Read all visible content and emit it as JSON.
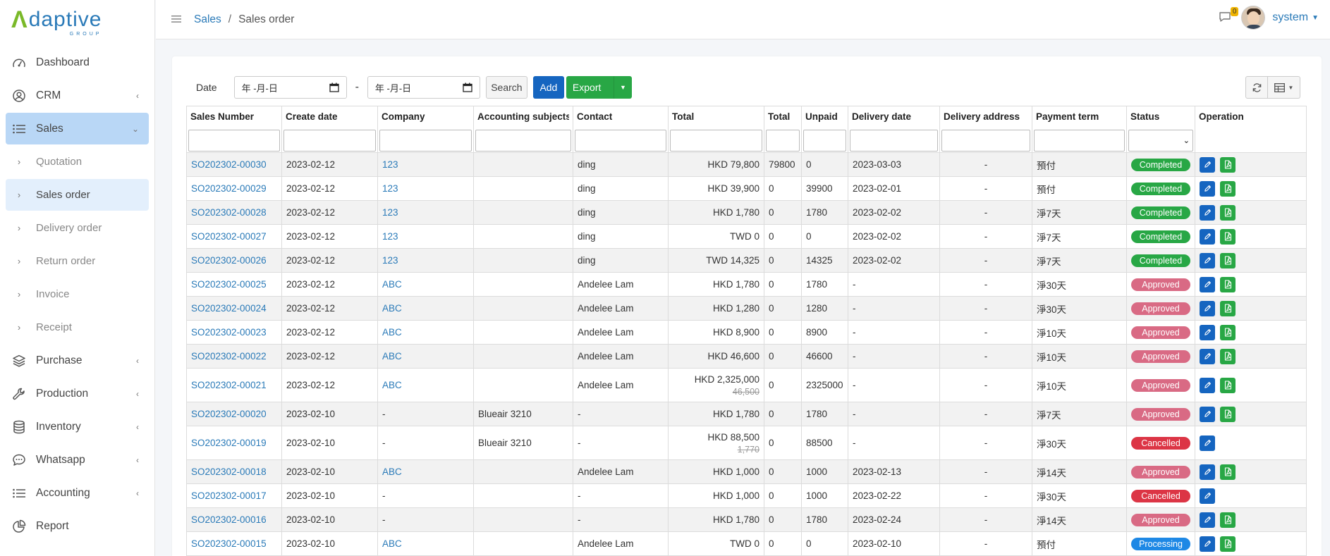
{
  "brand": {
    "mark": "Λ",
    "word": "daptive",
    "sub": "GROUP",
    "mark_color": "#7ab929",
    "word_color": "#2a7ab8"
  },
  "sidebar": {
    "items": [
      {
        "label": "Dashboard",
        "icon": "dashboard-icon",
        "caret": ""
      },
      {
        "label": "CRM",
        "icon": "user-circle-icon",
        "caret": "‹"
      },
      {
        "label": "Sales",
        "icon": "list-icon",
        "caret": "⌄",
        "active": true
      },
      {
        "label": "Quotation",
        "sub": true
      },
      {
        "label": "Sales order",
        "sub": true,
        "active": true
      },
      {
        "label": "Delivery order",
        "sub": true
      },
      {
        "label": "Return order",
        "sub": true
      },
      {
        "label": "Invoice",
        "sub": true
      },
      {
        "label": "Receipt",
        "sub": true
      },
      {
        "label": "Purchase",
        "icon": "layers-icon",
        "caret": "‹"
      },
      {
        "label": "Production",
        "icon": "wrench-icon",
        "caret": "‹"
      },
      {
        "label": "Inventory",
        "icon": "database-icon",
        "caret": "‹"
      },
      {
        "label": "Whatsapp",
        "icon": "chat-bubble-icon",
        "caret": "‹"
      },
      {
        "label": "Accounting",
        "icon": "list-icon",
        "caret": "‹"
      },
      {
        "label": "Report",
        "icon": "pie-chart-icon",
        "caret": ""
      }
    ]
  },
  "header": {
    "breadcrumb_link": "Sales",
    "breadcrumb_sep": "/",
    "breadcrumb_current": "Sales order",
    "notification_count": "0",
    "user_name": "system"
  },
  "toolbar": {
    "date_label": "Date",
    "date_from_placeholder": "年 -月-日",
    "date_to_placeholder": "年 -月-日",
    "range_sep": "-",
    "search_label": "Search",
    "add_label": "Add",
    "export_label": "Export"
  },
  "table": {
    "columns": [
      "Sales Number",
      "Create date",
      "Company",
      "Accounting subjects",
      "Contact",
      "Total",
      "Total",
      "Unpaid",
      "Delivery date",
      "Delivery address",
      "Payment term",
      "Status",
      "Operation"
    ],
    "status_colors": {
      "Completed": "#28a745",
      "Approved": "#d96a84",
      "Cancelled": "#dc3545",
      "Processing": "#1e88e5"
    },
    "rows": [
      {
        "no": "SO202302-00030",
        "date": "2023-02-12",
        "company": "123",
        "acct": "",
        "contact": "ding",
        "total": "HKD 79,800",
        "old": "",
        "total2": "79800",
        "unpaid": "0",
        "delivery": "2023-03-03",
        "addr": "-",
        "term": "預付",
        "status": "Completed",
        "pdf": true
      },
      {
        "no": "SO202302-00029",
        "date": "2023-02-12",
        "company": "123",
        "acct": "",
        "contact": "ding",
        "total": "HKD 39,900",
        "old": "",
        "total2": "0",
        "unpaid": "39900",
        "delivery": "2023-02-01",
        "addr": "-",
        "term": "預付",
        "status": "Completed",
        "pdf": true
      },
      {
        "no": "SO202302-00028",
        "date": "2023-02-12",
        "company": "123",
        "acct": "",
        "contact": "ding",
        "total": "HKD 1,780",
        "old": "",
        "total2": "0",
        "unpaid": "1780",
        "delivery": "2023-02-02",
        "addr": "-",
        "term": "淨7天",
        "status": "Completed",
        "pdf": true
      },
      {
        "no": "SO202302-00027",
        "date": "2023-02-12",
        "company": "123",
        "acct": "",
        "contact": "ding",
        "total": "TWD 0",
        "old": "",
        "total2": "0",
        "unpaid": "0",
        "delivery": "2023-02-02",
        "addr": "-",
        "term": "淨7天",
        "status": "Completed",
        "pdf": true
      },
      {
        "no": "SO202302-00026",
        "date": "2023-02-12",
        "company": "123",
        "acct": "",
        "contact": "ding",
        "total": "TWD 14,325",
        "old": "",
        "total2": "0",
        "unpaid": "14325",
        "delivery": "2023-02-02",
        "addr": "-",
        "term": "淨7天",
        "status": "Completed",
        "pdf": true
      },
      {
        "no": "SO202302-00025",
        "date": "2023-02-12",
        "company": "ABC",
        "acct": "",
        "contact": "Andelee Lam",
        "total": "HKD 1,780",
        "old": "",
        "total2": "0",
        "unpaid": "1780",
        "delivery": "-",
        "addr": "-",
        "term": "淨30天",
        "status": "Approved",
        "pdf": true
      },
      {
        "no": "SO202302-00024",
        "date": "2023-02-12",
        "company": "ABC",
        "acct": "",
        "contact": "Andelee Lam",
        "total": "HKD 1,280",
        "old": "",
        "total2": "0",
        "unpaid": "1280",
        "delivery": "-",
        "addr": "-",
        "term": "淨30天",
        "status": "Approved",
        "pdf": true
      },
      {
        "no": "SO202302-00023",
        "date": "2023-02-12",
        "company": "ABC",
        "acct": "",
        "contact": "Andelee Lam",
        "total": "HKD 8,900",
        "old": "",
        "total2": "0",
        "unpaid": "8900",
        "delivery": "-",
        "addr": "-",
        "term": "淨10天",
        "status": "Approved",
        "pdf": true
      },
      {
        "no": "SO202302-00022",
        "date": "2023-02-12",
        "company": "ABC",
        "acct": "",
        "contact": "Andelee Lam",
        "total": "HKD 46,600",
        "old": "",
        "total2": "0",
        "unpaid": "46600",
        "delivery": "-",
        "addr": "-",
        "term": "淨10天",
        "status": "Approved",
        "pdf": true
      },
      {
        "no": "SO202302-00021",
        "date": "2023-02-12",
        "company": "ABC",
        "acct": "",
        "contact": "Andelee Lam",
        "total": "HKD 2,325,000",
        "old": "46,500",
        "total2": "0",
        "unpaid": "2325000",
        "delivery": "-",
        "addr": "-",
        "term": "淨10天",
        "status": "Approved",
        "pdf": true
      },
      {
        "no": "SO202302-00020",
        "date": "2023-02-10",
        "company": "-",
        "acct": "Blueair 3210",
        "contact": "-",
        "total": "HKD 1,780",
        "old": "",
        "total2": "0",
        "unpaid": "1780",
        "delivery": "-",
        "addr": "-",
        "term": "淨7天",
        "status": "Approved",
        "pdf": true
      },
      {
        "no": "SO202302-00019",
        "date": "2023-02-10",
        "company": "-",
        "acct": "Blueair 3210",
        "contact": "-",
        "total": "HKD 88,500",
        "old": "1,770",
        "total2": "0",
        "unpaid": "88500",
        "delivery": "-",
        "addr": "-",
        "term": "淨30天",
        "status": "Cancelled",
        "pdf": false
      },
      {
        "no": "SO202302-00018",
        "date": "2023-02-10",
        "company": "ABC",
        "acct": "",
        "contact": "Andelee Lam",
        "total": "HKD 1,000",
        "old": "",
        "total2": "0",
        "unpaid": "1000",
        "delivery": "2023-02-13",
        "addr": "-",
        "term": "淨14天",
        "status": "Approved",
        "pdf": true
      },
      {
        "no": "SO202302-00017",
        "date": "2023-02-10",
        "company": "-",
        "acct": "",
        "contact": "-",
        "total": "HKD 1,000",
        "old": "",
        "total2": "0",
        "unpaid": "1000",
        "delivery": "2023-02-22",
        "addr": "-",
        "term": "淨30天",
        "status": "Cancelled",
        "pdf": false
      },
      {
        "no": "SO202302-00016",
        "date": "2023-02-10",
        "company": "-",
        "acct": "",
        "contact": "-",
        "total": "HKD 1,780",
        "old": "",
        "total2": "0",
        "unpaid": "1780",
        "delivery": "2023-02-24",
        "addr": "-",
        "term": "淨14天",
        "status": "Approved",
        "pdf": true
      },
      {
        "no": "SO202302-00015",
        "date": "2023-02-10",
        "company": "ABC",
        "acct": "",
        "contact": "Andelee Lam",
        "total": "TWD 0",
        "old": "",
        "total2": "0",
        "unpaid": "0",
        "delivery": "2023-02-10",
        "addr": "-",
        "term": "預付",
        "status": "Processing",
        "pdf": true
      }
    ]
  }
}
